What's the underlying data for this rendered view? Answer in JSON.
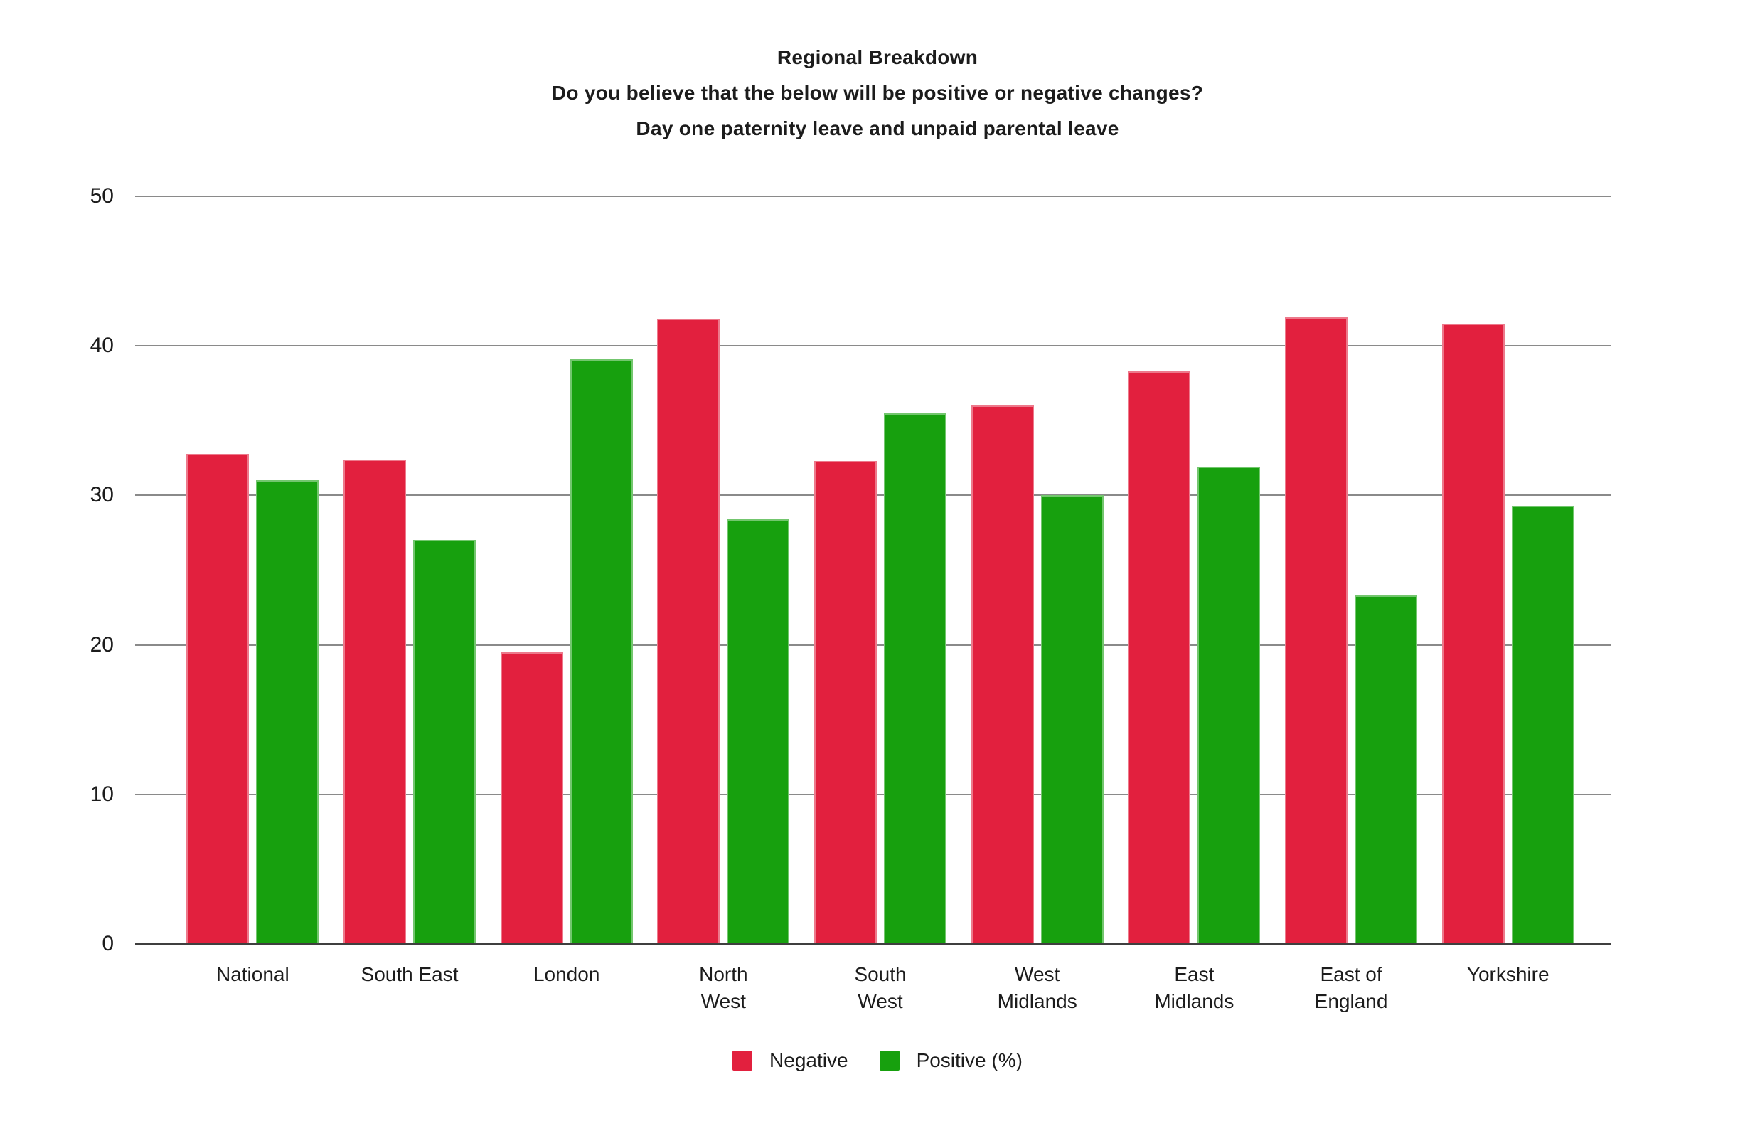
{
  "chart_data": {
    "type": "bar",
    "title_lines": [
      "Regional Breakdown",
      "Do you believe that the below will be positive or negative changes?",
      "Day one paternity leave and unpaid parental leave"
    ],
    "categories": [
      "National",
      "South East",
      "London",
      "North\nWest",
      "South\nWest",
      "West\nMidlands",
      "East\nMidlands",
      "East of\nEngland",
      "Yorkshire"
    ],
    "series": [
      {
        "name": "Negative",
        "color": "#e2203e",
        "values": [
          32.8,
          32.4,
          19.5,
          41.8,
          32.3,
          36.0,
          38.3,
          41.9,
          41.5
        ]
      },
      {
        "name": "Positive (%)",
        "color": "#17a00e",
        "values": [
          31.0,
          27.0,
          39.1,
          28.4,
          35.5,
          30.0,
          31.9,
          23.3,
          29.3
        ]
      }
    ],
    "xlabel": "",
    "ylabel": "",
    "ylim": [
      0,
      50
    ],
    "yticks": [
      0,
      10,
      20,
      30,
      40,
      50
    ],
    "grid": true,
    "legend_position": "bottom",
    "colors": {
      "background": "#ffffff",
      "grid": "#8a8a8a",
      "axis": "#3f3f3f",
      "text": "#1c1c1c"
    }
  }
}
